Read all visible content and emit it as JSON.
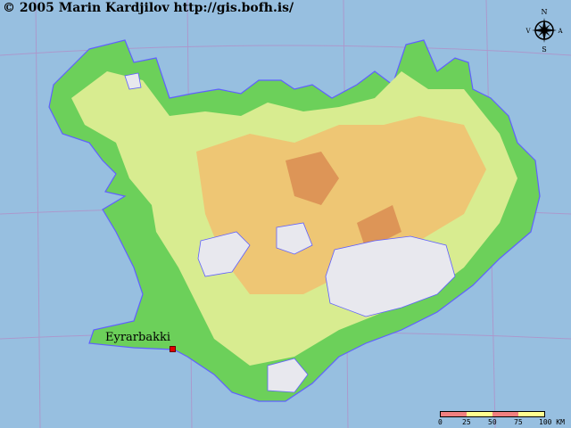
{
  "copyright": "© 2005  Marin Kardjilov  http://gis.bofh.is/",
  "place": {
    "name": "Eyrarbakki",
    "marker_color": "#e00000"
  },
  "compass": {
    "north": "N",
    "west": "V",
    "east": "A",
    "south": "S"
  },
  "scale": {
    "ticks": [
      "0",
      "25",
      "50",
      "75",
      "100 KM"
    ],
    "colors": [
      "#f08080",
      "#ffff90"
    ]
  },
  "colors": {
    "sea": "#97bfe0",
    "lowland": "#6cd05a",
    "mid": "#d8ec90",
    "high": "#f2c070",
    "peak": "#d88850",
    "glacier": "#e8e8ee",
    "coast": "#6060ff"
  }
}
